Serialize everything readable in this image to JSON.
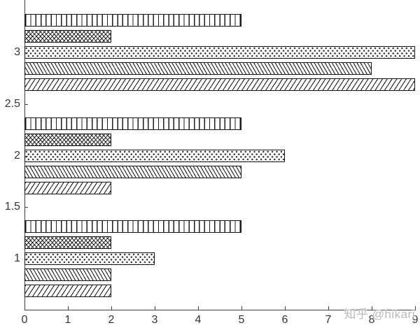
{
  "figure": {
    "watermark": "知乎 @hikari",
    "watermark_color": "#b9b9b9",
    "background": "#ffffff"
  },
  "chart_data": {
    "type": "bar",
    "orientation": "horizontal",
    "title": "",
    "xlabel": "",
    "ylabel": "",
    "xlim": [
      0,
      9
    ],
    "ylim": [
      0.5,
      3.5
    ],
    "grid": false,
    "legend": false,
    "bar_fill": "#ffffff",
    "bar_edge": "#161616",
    "axis_color": "#414141",
    "tick_label_color": "#353535",
    "tick_direction": "in",
    "categories": [
      1,
      2,
      3
    ],
    "series_order_within_group": "top-to-bottom",
    "series": [
      {
        "name": "vertical-hatch",
        "pattern": "vertical-lines",
        "values": [
          5,
          5,
          5
        ]
      },
      {
        "name": "crosshatch",
        "pattern": "crosshatch",
        "values": [
          2,
          2,
          2
        ]
      },
      {
        "name": "dotted",
        "pattern": "dots",
        "values": [
          3,
          6,
          9
        ]
      },
      {
        "name": "backslash-hatch",
        "pattern": "diagonal-down",
        "values": [
          2,
          5,
          8
        ]
      },
      {
        "name": "forwardslash-hatch",
        "pattern": "diagonal-up",
        "values": [
          2,
          2,
          9
        ]
      }
    ],
    "x_axis": {
      "ticks": [
        0,
        1,
        2,
        3,
        4,
        5,
        6,
        7,
        8,
        9
      ],
      "labels": [
        "0",
        "1",
        "2",
        "3",
        "4",
        "5",
        "6",
        "7",
        "8",
        "9"
      ]
    },
    "y_axis": {
      "ticks": [
        1,
        1.5,
        2,
        2.5,
        3
      ],
      "labels": [
        "1",
        "1.5",
        "2",
        "2.5",
        "3"
      ]
    }
  }
}
